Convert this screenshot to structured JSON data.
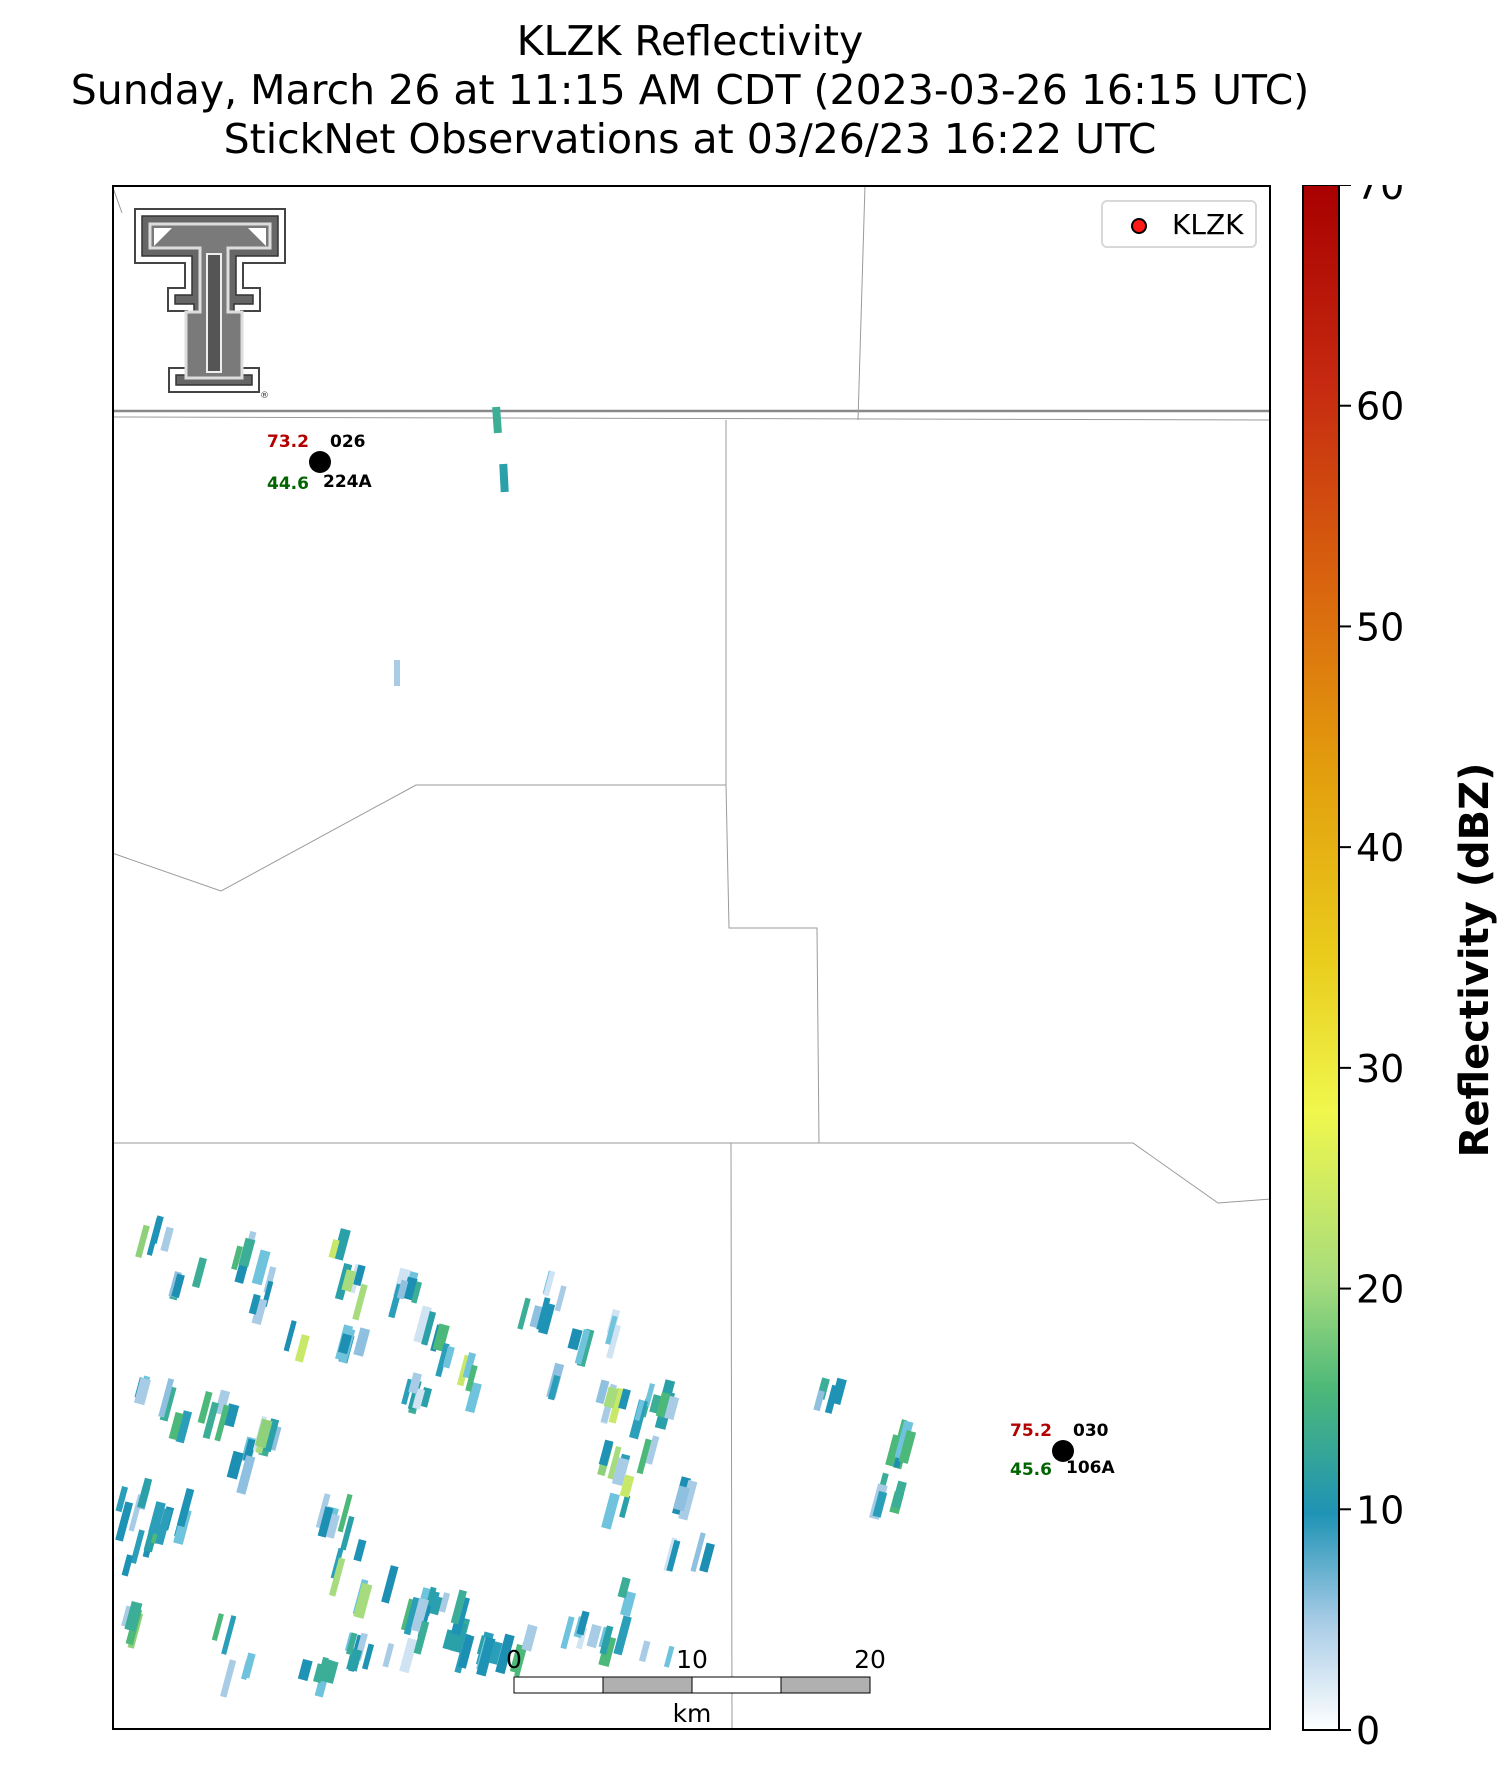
{
  "title": {
    "line1": "KLZK Reflectivity",
    "line2": "Sunday, March 26 at 11:15 AM CDT (2023-03-26 16:15 UTC)",
    "line3": "StickNet Observations at 03/26/23 16:22 UTC"
  },
  "legend": {
    "label": "KLZK",
    "marker_color": "#ff1a1a"
  },
  "logo": {
    "name": "texas-tech-double-t-logo",
    "mark": "®"
  },
  "colorbar": {
    "label": "Reflectivity (dBZ)",
    "min": 0,
    "max": 70,
    "ticks": [
      "0",
      "10",
      "20",
      "30",
      "40",
      "50",
      "60",
      "70"
    ],
    "colormap": "pyart_HomeyerRainbow"
  },
  "scalebar": {
    "ticks": [
      "0",
      "10",
      "20"
    ],
    "unit": "km"
  },
  "stations": [
    {
      "id": "0263",
      "name": "026",
      "probe": "224A",
      "temperature": "73.2",
      "dewpoint": "44.6",
      "temp_color": "#b30000",
      "dew_color": "#006400"
    },
    {
      "id": "0304",
      "name": "030",
      "probe": "106A",
      "temperature": "75.2",
      "dewpoint": "45.6",
      "temp_color": "#b30000",
      "dew_color": "#006400"
    }
  ]
}
